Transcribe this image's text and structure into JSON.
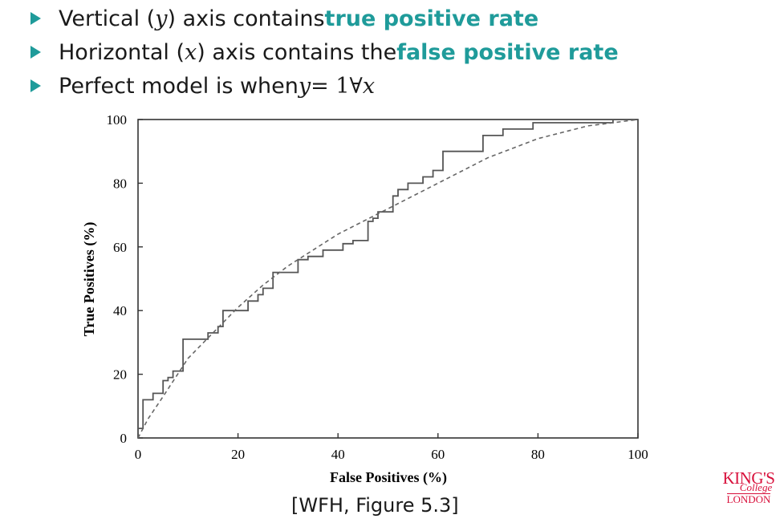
{
  "bullets": [
    {
      "pre": "Vertical (",
      "var": "y",
      "mid": ") axis contains ",
      "hl": "true positive rate"
    },
    {
      "pre": "Horizontal (",
      "var": "x",
      "mid": ") axis contains the ",
      "hl": "false positive rate"
    },
    {
      "pre": "Perfect model is when ",
      "var": "y",
      "mid": " = 1∀",
      "hl": "x"
    }
  ],
  "caption": "[WFH, Figure 5.3]",
  "logo": {
    "line1": "KING'S",
    "line2": "College",
    "line3": "LONDON"
  },
  "colors": {
    "accent": "#1f9b9a",
    "logo": "#d8103b"
  },
  "chart_data": {
    "type": "line",
    "xlabel": "False Positives (%)",
    "ylabel": "True Positives (%)",
    "xlim": [
      0,
      100
    ],
    "ylim": [
      0,
      100
    ],
    "xticks": [
      0,
      20,
      40,
      60,
      80,
      100
    ],
    "yticks": [
      0,
      20,
      40,
      60,
      80,
      100
    ],
    "grid": false,
    "series": [
      {
        "style": "solid-step",
        "points": [
          [
            0,
            0
          ],
          [
            0,
            3
          ],
          [
            1,
            3
          ],
          [
            1,
            12
          ],
          [
            3,
            12
          ],
          [
            3,
            14
          ],
          [
            5,
            14
          ],
          [
            5,
            18
          ],
          [
            6,
            18
          ],
          [
            6,
            19
          ],
          [
            7,
            19
          ],
          [
            7,
            21
          ],
          [
            9,
            21
          ],
          [
            9,
            31
          ],
          [
            14,
            31
          ],
          [
            14,
            33
          ],
          [
            16,
            33
          ],
          [
            16,
            35
          ],
          [
            17,
            35
          ],
          [
            17,
            40
          ],
          [
            22,
            40
          ],
          [
            22,
            43
          ],
          [
            24,
            43
          ],
          [
            24,
            45
          ],
          [
            25,
            45
          ],
          [
            25,
            47
          ],
          [
            27,
            47
          ],
          [
            27,
            52
          ],
          [
            32,
            52
          ],
          [
            32,
            56
          ],
          [
            34,
            56
          ],
          [
            34,
            57
          ],
          [
            37,
            57
          ],
          [
            37,
            59
          ],
          [
            41,
            59
          ],
          [
            41,
            61
          ],
          [
            43,
            61
          ],
          [
            43,
            62
          ],
          [
            46,
            62
          ],
          [
            46,
            68
          ],
          [
            47,
            68
          ],
          [
            47,
            69
          ],
          [
            48,
            69
          ],
          [
            48,
            71
          ],
          [
            51,
            71
          ],
          [
            51,
            76
          ],
          [
            52,
            76
          ],
          [
            52,
            78
          ],
          [
            54,
            78
          ],
          [
            54,
            80
          ],
          [
            57,
            80
          ],
          [
            57,
            82
          ],
          [
            59,
            82
          ],
          [
            59,
            84
          ],
          [
            61,
            84
          ],
          [
            61,
            90
          ],
          [
            69,
            90
          ],
          [
            69,
            95
          ],
          [
            73,
            95
          ],
          [
            73,
            97
          ],
          [
            79,
            97
          ],
          [
            79,
            99
          ],
          [
            95,
            99
          ],
          [
            95,
            100
          ],
          [
            100,
            100
          ]
        ]
      },
      {
        "style": "dashed-curve",
        "points": [
          [
            0,
            0
          ],
          [
            2,
            6
          ],
          [
            5,
            13
          ],
          [
            10,
            25
          ],
          [
            15,
            33
          ],
          [
            20,
            41
          ],
          [
            25,
            48
          ],
          [
            30,
            54
          ],
          [
            35,
            59
          ],
          [
            40,
            64
          ],
          [
            45,
            68
          ],
          [
            50,
            72
          ],
          [
            55,
            76
          ],
          [
            60,
            80
          ],
          [
            65,
            84
          ],
          [
            70,
            88
          ],
          [
            75,
            91
          ],
          [
            80,
            94
          ],
          [
            85,
            96
          ],
          [
            90,
            98
          ],
          [
            95,
            99
          ],
          [
            100,
            100
          ]
        ]
      }
    ]
  }
}
